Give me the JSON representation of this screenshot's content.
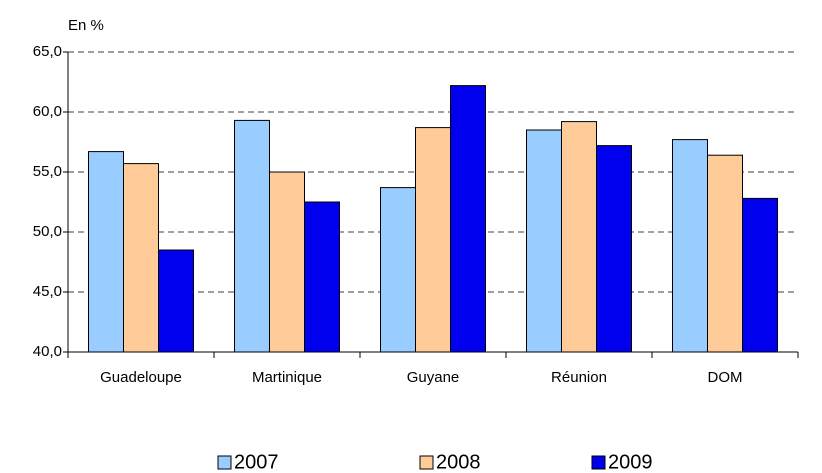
{
  "chart_data": {
    "type": "bar",
    "y_axis_label": "En %",
    "categories": [
      "Guadeloupe",
      "Martinique",
      "Guyane",
      "Réunion",
      "DOM"
    ],
    "series": [
      {
        "name": "2007",
        "color": "#99ccff",
        "values": [
          56.7,
          59.3,
          53.7,
          58.5,
          57.7
        ]
      },
      {
        "name": "2008",
        "color": "#ffcc99",
        "values": [
          55.7,
          55.0,
          58.7,
          59.2,
          56.4
        ]
      },
      {
        "name": "2009",
        "color": "#0000ee",
        "values": [
          48.5,
          52.5,
          62.2,
          57.2,
          52.8
        ]
      }
    ],
    "ylim": [
      40,
      65
    ],
    "yticks": [
      {
        "value": 40,
        "label": "40,0"
      },
      {
        "value": 45,
        "label": "45,0"
      },
      {
        "value": 50,
        "label": "50,0"
      },
      {
        "value": 55,
        "label": "55,0"
      },
      {
        "value": 60,
        "label": "60,0"
      },
      {
        "value": 65,
        "label": "65,0"
      }
    ],
    "grid": true,
    "legend": "bottom"
  }
}
